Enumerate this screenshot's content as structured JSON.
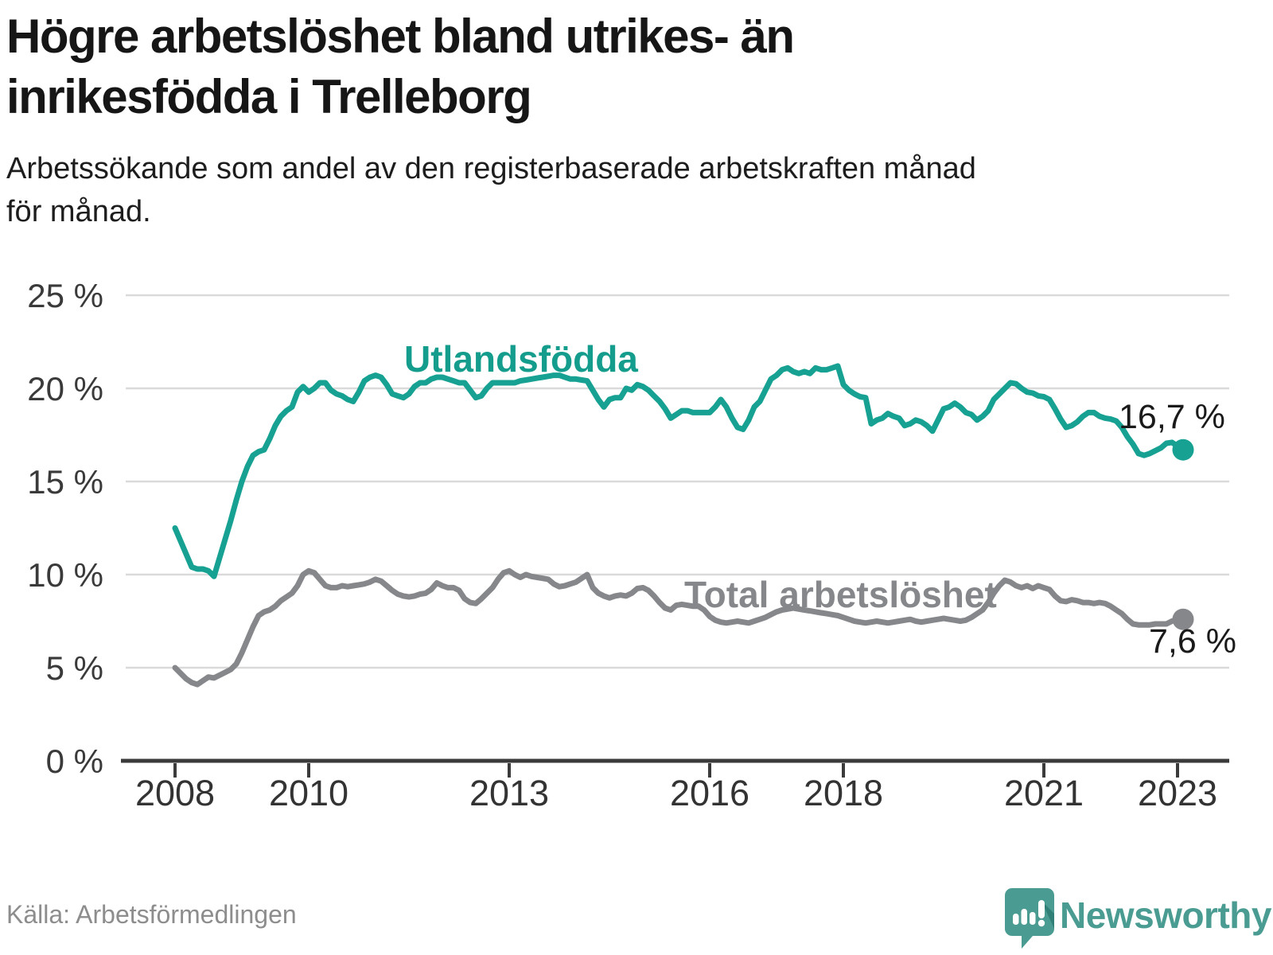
{
  "header": {
    "title_line1": "Högre arbetslöshet bland utrikes- än",
    "title_line2": "inrikesfödda i Trelleborg",
    "subtitle_line1": "Arbetssökande som andel av den registerbaserade arbetskraften månad",
    "subtitle_line2": "för månad."
  },
  "footer": {
    "source": "Källa: Arbetsförmedlingen",
    "brand": "Newsworthy"
  },
  "colors": {
    "teal_line": "#16a192",
    "gray_line": "#85878a",
    "grid": "#dadada",
    "axis": "#3b3b3b",
    "logo_teal": "#4a9c92",
    "logo_fold": "#2c7b72"
  },
  "chart_data": {
    "type": "line",
    "title": "Högre arbetslöshet bland utrikes- än inrikesfödda i Trelleborg",
    "subtitle": "Arbetssökande som andel av den registerbaserade arbetskraften månad för månad.",
    "x_start": "2008-01",
    "x_end": "2023-02",
    "x_interval": "monthly",
    "ylim": [
      0,
      25
    ],
    "grid": "horizontal",
    "y_tick_labels": [
      "0 %",
      "5 %",
      "10 %",
      "15 %",
      "20 %",
      "25 %"
    ],
    "x_tick_labels": [
      "2008",
      "2010",
      "2013",
      "2016",
      "2018",
      "2021",
      "2023"
    ],
    "series": [
      {
        "name": "Utlandsfödda",
        "color": "#16a192",
        "end_label": "16,7 %",
        "end_value": 16.7,
        "values": [
          12.5,
          11.8,
          11.1,
          10.4,
          10.3,
          10.3,
          10.2,
          9.9,
          10.9,
          11.9,
          12.9,
          14.0,
          15.0,
          15.8,
          16.4,
          16.6,
          16.7,
          17.3,
          18.0,
          18.5,
          18.8,
          19.0,
          19.8,
          20.1,
          19.8,
          20.0,
          20.3,
          20.3,
          19.9,
          19.7,
          19.6,
          19.4,
          19.3,
          19.8,
          20.4,
          20.6,
          20.7,
          20.6,
          20.2,
          19.7,
          19.6,
          19.5,
          19.7,
          20.1,
          20.3,
          20.3,
          20.5,
          20.6,
          20.6,
          20.5,
          20.4,
          20.3,
          20.3,
          19.9,
          19.5,
          19.6,
          20.0,
          20.3,
          20.3,
          20.3,
          20.3,
          20.3,
          20.4,
          20.45,
          20.5,
          20.55,
          20.6,
          20.65,
          20.7,
          20.7,
          20.6,
          20.5,
          20.5,
          20.45,
          20.4,
          19.9,
          19.4,
          19.0,
          19.4,
          19.5,
          19.5,
          20.0,
          19.9,
          20.2,
          20.1,
          19.9,
          19.6,
          19.3,
          18.9,
          18.4,
          18.6,
          18.8,
          18.8,
          18.7,
          18.7,
          18.7,
          18.7,
          19.0,
          19.4,
          19.0,
          18.4,
          17.9,
          17.8,
          18.3,
          19.0,
          19.3,
          19.9,
          20.5,
          20.7,
          21.0,
          21.1,
          20.9,
          20.8,
          20.9,
          20.8,
          21.1,
          21.0,
          21.0,
          21.1,
          21.2,
          20.2,
          19.9,
          19.7,
          19.55,
          19.5,
          18.1,
          18.3,
          18.4,
          18.65,
          18.5,
          18.4,
          18.0,
          18.1,
          18.3,
          18.2,
          18.0,
          17.7,
          18.3,
          18.9,
          19.0,
          19.2,
          19.0,
          18.7,
          18.6,
          18.3,
          18.5,
          18.8,
          19.4,
          19.7,
          20.0,
          20.3,
          20.25,
          20.0,
          19.8,
          19.75,
          19.6,
          19.55,
          19.4,
          18.9,
          18.35,
          17.9,
          18.0,
          18.2,
          18.5,
          18.7,
          18.7,
          18.5,
          18.4,
          18.35,
          18.25,
          17.9,
          17.4,
          17.0,
          16.5,
          16.4,
          16.5,
          16.65,
          16.8,
          17.05,
          17.1,
          16.9,
          16.7
        ]
      },
      {
        "name": "Total arbetslöshet",
        "color": "#85878a",
        "end_label": "7,6 %",
        "end_value": 7.6,
        "values": [
          5.0,
          4.7,
          4.4,
          4.2,
          4.1,
          4.3,
          4.5,
          4.45,
          4.6,
          4.75,
          4.9,
          5.2,
          5.8,
          6.5,
          7.2,
          7.8,
          8.0,
          8.1,
          8.3,
          8.6,
          8.8,
          9.0,
          9.4,
          10.0,
          10.2,
          10.1,
          9.75,
          9.4,
          9.3,
          9.3,
          9.4,
          9.35,
          9.4,
          9.45,
          9.5,
          9.6,
          9.75,
          9.65,
          9.4,
          9.15,
          8.95,
          8.85,
          8.8,
          8.85,
          8.95,
          9.0,
          9.2,
          9.55,
          9.4,
          9.3,
          9.3,
          9.15,
          8.7,
          8.5,
          8.45,
          8.7,
          9.0,
          9.3,
          9.75,
          10.1,
          10.2,
          10.0,
          9.85,
          10.0,
          9.9,
          9.85,
          9.8,
          9.75,
          9.5,
          9.35,
          9.4,
          9.5,
          9.6,
          9.8,
          10.0,
          9.3,
          9.0,
          8.85,
          8.75,
          8.85,
          8.9,
          8.85,
          9.0,
          9.25,
          9.3,
          9.15,
          8.85,
          8.5,
          8.2,
          8.1,
          8.35,
          8.4,
          8.35,
          8.3,
          8.3,
          8.1,
          7.75,
          7.55,
          7.45,
          7.4,
          7.45,
          7.5,
          7.45,
          7.4,
          7.5,
          7.6,
          7.7,
          7.85,
          8.0,
          8.1,
          8.15,
          8.2,
          8.15,
          8.1,
          8.05,
          8.0,
          7.95,
          7.9,
          7.85,
          7.8,
          7.7,
          7.6,
          7.5,
          7.45,
          7.4,
          7.45,
          7.5,
          7.45,
          7.4,
          7.45,
          7.5,
          7.55,
          7.6,
          7.5,
          7.45,
          7.5,
          7.55,
          7.6,
          7.65,
          7.6,
          7.55,
          7.5,
          7.55,
          7.7,
          7.9,
          8.1,
          8.5,
          9.0,
          9.4,
          9.7,
          9.6,
          9.4,
          9.3,
          9.4,
          9.25,
          9.4,
          9.3,
          9.2,
          8.85,
          8.6,
          8.55,
          8.65,
          8.6,
          8.5,
          8.5,
          8.45,
          8.5,
          8.45,
          8.3,
          8.1,
          7.9,
          7.6,
          7.35,
          7.3,
          7.3,
          7.3,
          7.35,
          7.35,
          7.35,
          7.5,
          7.6,
          7.6
        ]
      }
    ]
  }
}
